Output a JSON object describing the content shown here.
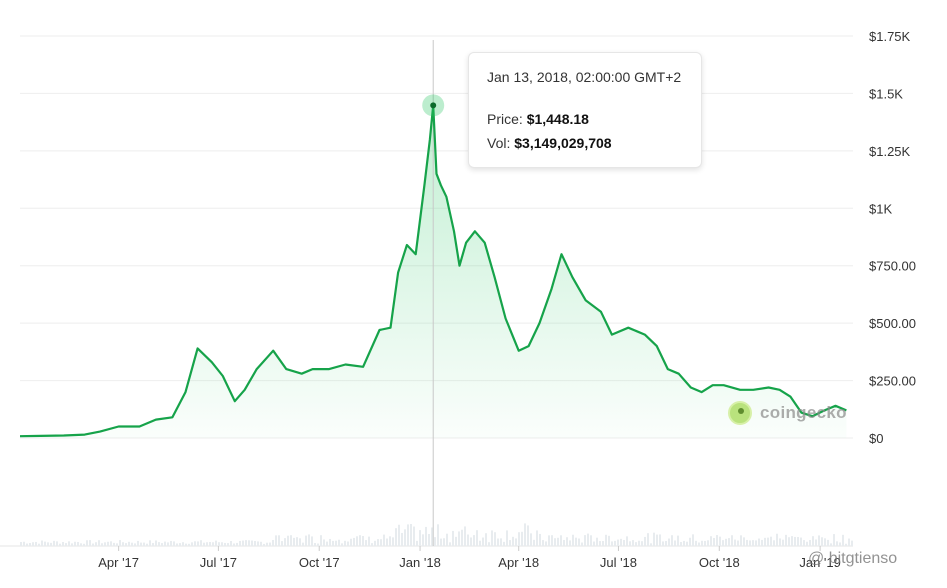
{
  "chart_data": {
    "type": "line",
    "title": "",
    "xlabel": "",
    "ylabel": "",
    "y_tick_labels": [
      "$0",
      "$250.00",
      "$500.00",
      "$750.00",
      "$1K",
      "$1.25K",
      "$1.5K",
      "$1.75K"
    ],
    "y_tick_values": [
      0,
      250,
      500,
      750,
      1000,
      1250,
      1500,
      1750
    ],
    "ylim": [
      0,
      1750
    ],
    "x_tick_labels": [
      "Apr '17",
      "Jul '17",
      "Oct '17",
      "Jan '18",
      "Apr '18",
      "Jul '18",
      "Oct '18",
      "Jan '19"
    ],
    "x_tick_dates": [
      "2017-04-01",
      "2017-07-01",
      "2017-10-01",
      "2018-01-01",
      "2018-04-01",
      "2018-07-01",
      "2018-10-01",
      "2019-01-01"
    ],
    "xlim": [
      "2017-01-01",
      "2019-01-31"
    ],
    "series": [
      {
        "color": "#16a34a",
        "x": [
          "2017-01-01",
          "2017-01-20",
          "2017-02-10",
          "2017-03-01",
          "2017-03-15",
          "2017-04-01",
          "2017-04-20",
          "2017-05-05",
          "2017-05-20",
          "2017-06-01",
          "2017-06-12",
          "2017-06-25",
          "2017-07-05",
          "2017-07-16",
          "2017-07-25",
          "2017-08-05",
          "2017-08-20",
          "2017-09-01",
          "2017-09-15",
          "2017-09-25",
          "2017-10-10",
          "2017-10-25",
          "2017-11-10",
          "2017-11-25",
          "2017-12-05",
          "2017-12-12",
          "2017-12-20",
          "2017-12-28",
          "2018-01-05",
          "2018-01-10",
          "2018-01-13",
          "2018-01-16",
          "2018-01-20",
          "2018-01-25",
          "2018-02-01",
          "2018-02-06",
          "2018-02-12",
          "2018-02-20",
          "2018-03-01",
          "2018-03-10",
          "2018-03-20",
          "2018-04-01",
          "2018-04-10",
          "2018-04-20",
          "2018-05-01",
          "2018-05-10",
          "2018-05-20",
          "2018-06-01",
          "2018-06-15",
          "2018-06-25",
          "2018-07-10",
          "2018-07-25",
          "2018-08-05",
          "2018-08-15",
          "2018-08-25",
          "2018-09-05",
          "2018-09-15",
          "2018-09-25",
          "2018-10-05",
          "2018-10-20",
          "2018-11-01",
          "2018-11-15",
          "2018-11-25",
          "2018-12-05",
          "2018-12-15",
          "2018-12-25",
          "2019-01-05",
          "2019-01-15",
          "2019-01-25"
        ],
        "values": [
          8,
          9,
          11,
          15,
          28,
          50,
          50,
          80,
          90,
          200,
          390,
          330,
          270,
          160,
          210,
          300,
          380,
          300,
          280,
          300,
          300,
          320,
          310,
          470,
          480,
          720,
          840,
          800,
          1100,
          1300,
          1448,
          1150,
          1100,
          1050,
          900,
          750,
          850,
          900,
          850,
          700,
          520,
          380,
          400,
          500,
          650,
          800,
          700,
          600,
          550,
          450,
          480,
          450,
          400,
          300,
          280,
          220,
          200,
          230,
          230,
          210,
          210,
          220,
          210,
          180,
          110,
          95,
          120,
          140,
          120
        ]
      }
    ],
    "tooltip": {
      "date": "Jan 13, 2018, 02:00:00 GMT+2",
      "price_label": "Price:",
      "price_value": "$1,448.18",
      "vol_label": "Vol:",
      "vol_value": "$3,149,029,708",
      "date_value": "2018-01-13"
    },
    "watermark": "coingecko",
    "credit": "@ bitgtienso",
    "grid": true
  }
}
